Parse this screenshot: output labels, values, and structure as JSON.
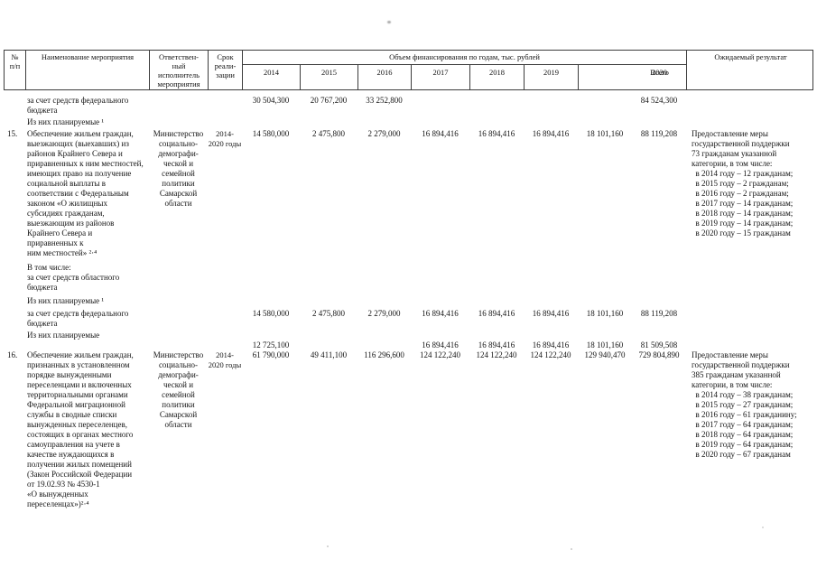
{
  "header": {
    "col_num": "№\nп/п",
    "col_name": "Наименование мероприятия",
    "col_executor": "Ответствен-\nный\nисполнитель\nмероприятия",
    "col_term": "Срок\nреали-\nзации",
    "finance_title": "Объем финансирования по годам, тыс. рублей",
    "years": [
      "2014",
      "2015",
      "2016",
      "2017",
      "2018",
      "2019",
      "2020"
    ],
    "col_total": "Всего",
    "col_result": "Ожидаемый результат"
  },
  "rows": [
    {
      "num": "",
      "name": "за счет средств федерального\nбюджета",
      "values": [
        "30 504,300",
        "20 767,200",
        "33 252,800",
        "",
        "",
        "",
        "",
        "84 524,300"
      ]
    },
    {
      "num": "",
      "name": "Из них планируемые ¹",
      "values": [
        "",
        "",
        "",
        "",
        "",
        "",
        "",
        ""
      ]
    },
    {
      "num": "15.",
      "name": "Обеспечение жильем граждан,\nвыезжающих (выехавших) из\nрайонов Крайнего Севера и\nприравненных к ним местностей,\nимеющих право на получение\nсоциальной выплаты в\nсоответствии с Федеральным\nзаконом «О жилищных\nсубсидиях гражданам,\nвыезжающим из районов\nКрайнего Севера и\nприравненных к\nним местностей» ²·⁴",
      "executor": "Министерство\nсоциально-\nдемографи-\nческой и\nсемейной\nполитики\nСамарской\nобласти",
      "term": "2014-\n2020 годы",
      "values": [
        "14 580,000",
        "2 475,800",
        "2 279,000",
        "16 894,416",
        "16 894,416",
        "16 894,416",
        "18 101,160",
        "88 119,208"
      ],
      "result": "Предоставление меры\nгосударственной поддержки\n73 гражданам указанной\nкатегории, в том числе:\n  в 2014 году – 12 гражданам;\n  в 2015 году – 2 гражданам;\n  в 2016 году – 2 гражданам;\n  в 2017 году – 14 гражданам;\n  в 2018 году – 14 гражданам;\n  в 2019 году – 14 гражданам;\n  в 2020 году – 15 гражданам"
    },
    {
      "num": "",
      "name": "В том числе:\nза счет средств областного\nбюджета",
      "values": [
        "",
        "",
        "",
        "",
        "",
        "",
        "",
        ""
      ]
    },
    {
      "num": "",
      "name": "Из них планируемые ¹",
      "values": [
        "",
        "",
        "",
        "",
        "",
        "",
        "",
        ""
      ]
    },
    {
      "num": "",
      "name": "за счет средств федерального\nбюджета",
      "values": [
        "14 580,000",
        "2 475,800",
        "2 279,000",
        "16 894,416",
        "16 894,416",
        "16 894,416",
        "18 101,160",
        "88 119,208"
      ]
    },
    {
      "num": "",
      "name": "Из них планируемые",
      "values": [
        "12 725,100",
        "",
        "",
        "16 894,416",
        "16 894,416",
        "16 894,416",
        "18 101,160",
        "81 509,508"
      ]
    },
    {
      "num": "16.",
      "name": "Обеспечение жильем граждан,\nпризнанных в установленном\nпорядке вынужденными\nпереселенцами и включенных\nтерриториальными органами\nФедеральной миграционной\nслужбы в сводные списки\nвынужденных переселенцев,\nсостоящих в органах местного\nсамоуправления на учете в\nкачестве нуждающихся в\nполучении жилых помещений\n(Закон Российской Федерации\nот 19.02.93 № 4530-1\n«О вынужденных\nпереселенцах»)²·⁴",
      "executor": "Министерство\nсоциально-\nдемографи-\nческой и\nсемейной\nполитики\nСамарской\nобласти",
      "term": "2014-\n2020 годы",
      "values": [
        "61 790,000",
        "49 411,100",
        "116 296,600",
        "124 122,240",
        "124 122,240",
        "124 122,240",
        "129 940,470",
        "729 804,890"
      ],
      "result": "Предоставление меры\nгосударственной поддержки\n385 гражданам указанной\nкатегории, в том числе:\n  в 2014 году – 38 гражданам;\n  в 2015 году – 27 гражданам;\n  в 2016 году – 61 гражданину;\n  в 2017 году – 64 гражданам;\n  в 2018 году – 64 гражданам;\n  в 2019 году – 64 гражданам;\n  в 2020 году – 67 гражданам"
    }
  ]
}
